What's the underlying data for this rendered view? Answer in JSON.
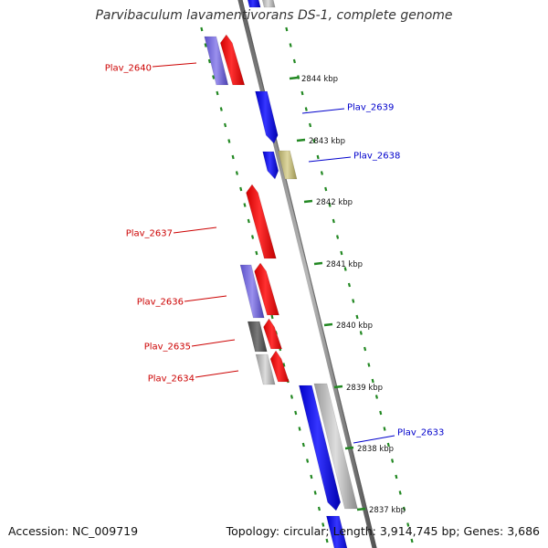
{
  "header": {
    "title": "Parvibaculum lavamentivorans DS-1, complete genome"
  },
  "footer": {
    "accession": "Accession: NC_009719",
    "summary": "Topology: circular; Length: 3,914,745 bp; Genes: 3,686"
  },
  "colors": {
    "forward_gene": "#ff0000",
    "reverse_gene": "#0000ff",
    "forward_label": "#cc0000",
    "reverse_label": "#0000cc",
    "backbone": "#888888",
    "scale_ticks": "#228822",
    "other_feature": "#c0b878"
  },
  "ticks": [
    {
      "label": "2844 kbp"
    },
    {
      "label": "2843 kbp"
    },
    {
      "label": "2842 kbp"
    },
    {
      "label": "2841 kbp"
    },
    {
      "label": "2840 kbp"
    },
    {
      "label": "2839 kbp"
    },
    {
      "label": "2838 kbp"
    },
    {
      "label": "2837 kbp"
    }
  ],
  "genes": [
    {
      "name": "Plav_2640",
      "strand": "forward"
    },
    {
      "name": "Plav_2639",
      "strand": "reverse"
    },
    {
      "name": "Plav_2638",
      "strand": "reverse"
    },
    {
      "name": "Plav_2637",
      "strand": "forward"
    },
    {
      "name": "Plav_2636",
      "strand": "forward"
    },
    {
      "name": "Plav_2635",
      "strand": "forward"
    },
    {
      "name": "Plav_2634",
      "strand": "forward"
    },
    {
      "name": "Plav_2633",
      "strand": "reverse"
    }
  ]
}
